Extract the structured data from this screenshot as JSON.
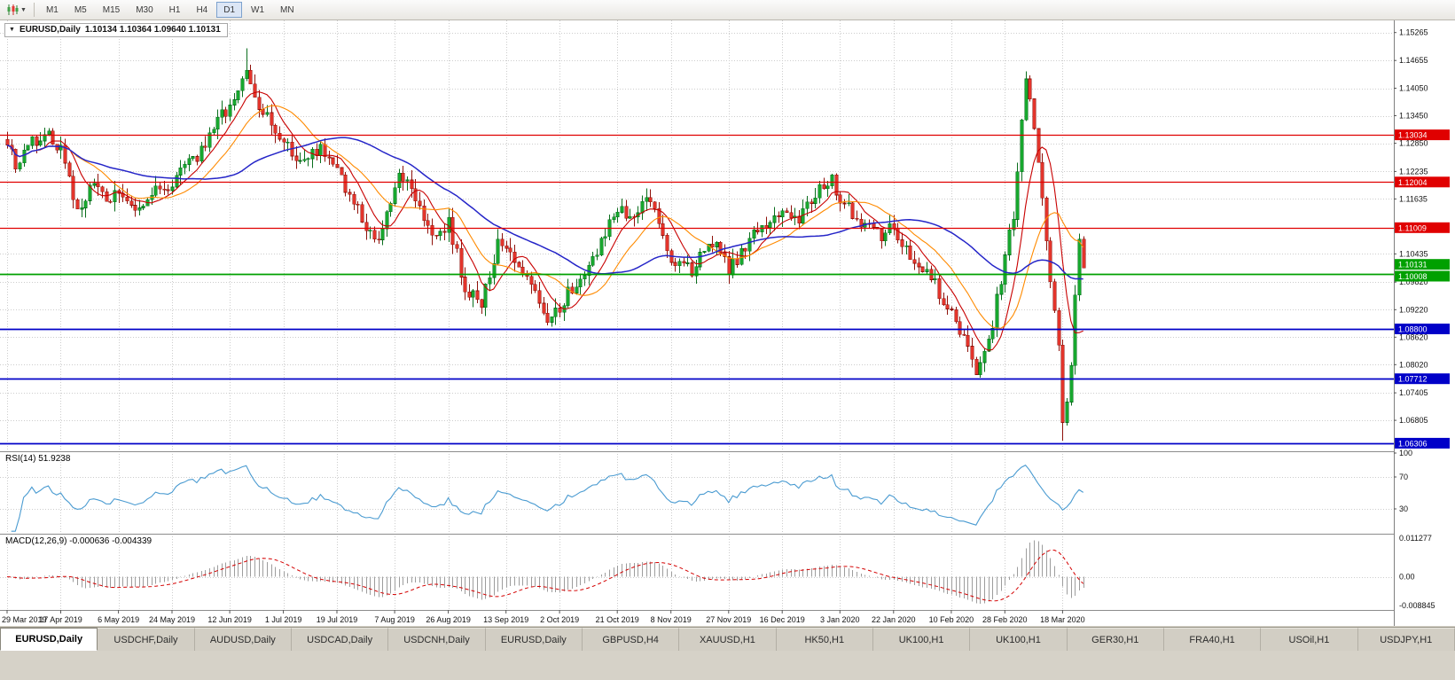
{
  "toolbar": {
    "timeframes": [
      "M1",
      "M5",
      "M15",
      "M30",
      "H1",
      "H4",
      "D1",
      "W1",
      "MN"
    ],
    "active_timeframe": "D1"
  },
  "chart_header": {
    "symbol_title": "EURUSD,Daily",
    "ohlc_text": "1.10134 1.10364 1.09640 1.10131"
  },
  "indicators": {
    "rsi_label": "RSI(14)",
    "rsi_value": "51.9238",
    "macd_label": "MACD(12,26,9)",
    "macd_values": "-0.000636 -0.004339"
  },
  "axes": {
    "price_ticks": [
      "1.15265",
      "1.14655",
      "1.14050",
      "1.13450",
      "1.12850",
      "1.12235",
      "1.11635",
      "1.10435",
      "1.09820",
      "1.09220",
      "1.08620",
      "1.08020",
      "1.07405",
      "1.06805"
    ],
    "rsi_ticks": [
      "100",
      "70",
      "30"
    ],
    "macd_ticks": [
      "0.011277",
      "0.00",
      "-0.008845"
    ],
    "date_labels": [
      {
        "t": "29 Mar 2019",
        "i": 0
      },
      {
        "t": "17 Apr 2019",
        "i": 13
      },
      {
        "t": "6 May 2019",
        "i": 27
      },
      {
        "t": "24 May 2019",
        "i": 40
      },
      {
        "t": "12 Jun 2019",
        "i": 54
      },
      {
        "t": "1 Jul 2019",
        "i": 67
      },
      {
        "t": "19 Jul 2019",
        "i": 80
      },
      {
        "t": "7 Aug 2019",
        "i": 94
      },
      {
        "t": "26 Aug 2019",
        "i": 107
      },
      {
        "t": "13 Sep 2019",
        "i": 121
      },
      {
        "t": "2 Oct 2019",
        "i": 134
      },
      {
        "t": "21 Oct 2019",
        "i": 148
      },
      {
        "t": "8 Nov 2019",
        "i": 161
      },
      {
        "t": "27 Nov 2019",
        "i": 175
      },
      {
        "t": "16 Dec 2019",
        "i": 188
      },
      {
        "t": "3 Jan 2020",
        "i": 202
      },
      {
        "t": "22 Jan 2020",
        "i": 215
      },
      {
        "t": "10 Feb 2020",
        "i": 229
      },
      {
        "t": "28 Feb 2020",
        "i": 242
      },
      {
        "t": "18 Mar 2020",
        "i": 256
      }
    ]
  },
  "levels": {
    "lines": [
      {
        "label": "1.13034",
        "price": 1.13034,
        "kind": "resistance"
      },
      {
        "label": "1.12004",
        "price": 1.12004,
        "kind": "resistance"
      },
      {
        "label": "1.11009",
        "price": 1.11009,
        "kind": "resistance"
      },
      {
        "label": "1.10008",
        "price": 1.10008,
        "kind": "pivot"
      },
      {
        "label": "1.08800",
        "price": 1.088,
        "kind": "support"
      },
      {
        "label": "1.07712",
        "price": 1.07712,
        "kind": "support"
      },
      {
        "label": "1.06306",
        "price": 1.06306,
        "kind": "support"
      }
    ],
    "current_price": {
      "label": "1.10131",
      "price": 1.10131
    }
  },
  "colors": {
    "up_fill": "#17a82e",
    "up_stroke": "#0a6e1d",
    "down_fill": "#e3342b",
    "down_stroke": "#8f120b",
    "resistance": "#e00000",
    "support": "#0000c8",
    "pivot": "#00a000",
    "current": "#00a000",
    "ma_fast": "#c80000",
    "ma_mid": "#ff8a00",
    "ma_slow": "#2525c8",
    "rsi_line": "#4a9bd1",
    "macd_hist": "#9d9d9d",
    "macd_signal": "#d40000",
    "grid": "#cccccc"
  },
  "chart_data": {
    "type": "candlestick",
    "symbol": "EURUSD",
    "timeframe": "Daily",
    "last_bar": {
      "open": 1.10134,
      "high": 1.10364,
      "low": 1.0964,
      "close": 1.10131
    },
    "indicator_values": {
      "rsi14": 51.9238,
      "macd_main": -0.000636,
      "macd_signal": -0.004339
    },
    "price_axis_range": [
      1.0615,
      1.1553
    ],
    "macd_range": [
      -0.008845,
      0.011277
    ],
    "rsi_levels": [
      30,
      70
    ],
    "horizontal_levels": [
      1.13034,
      1.12004,
      1.11009,
      1.10008,
      1.088,
      1.07712,
      1.06306
    ],
    "candles_count": 262,
    "noise": 0.0032,
    "wick": 0.0022,
    "extreme_high": 1.1492,
    "extreme_low": 1.0636,
    "last_close": 1.10131,
    "price_path_anchors": [
      [
        0,
        1.1295
      ],
      [
        2,
        1.1225
      ],
      [
        5,
        1.1285
      ],
      [
        9,
        1.1305
      ],
      [
        13,
        1.1275
      ],
      [
        17,
        1.1135
      ],
      [
        21,
        1.1195
      ],
      [
        24,
        1.1155
      ],
      [
        27,
        1.1185
      ],
      [
        31,
        1.1125
      ],
      [
        36,
        1.118
      ],
      [
        40,
        1.12
      ],
      [
        46,
        1.1255
      ],
      [
        51,
        1.133
      ],
      [
        56,
        1.14
      ],
      [
        58,
        1.1432
      ],
      [
        61,
        1.136
      ],
      [
        67,
        1.129
      ],
      [
        71,
        1.1245
      ],
      [
        76,
        1.1278
      ],
      [
        80,
        1.1222
      ],
      [
        85,
        1.114
      ],
      [
        90,
        1.1062
      ],
      [
        95,
        1.1218
      ],
      [
        98,
        1.1192
      ],
      [
        103,
        1.1085
      ],
      [
        107,
        1.1108
      ],
      [
        111,
        1.0972
      ],
      [
        115,
        1.0932
      ],
      [
        119,
        1.1062
      ],
      [
        121,
        1.1072
      ],
      [
        125,
        1.1002
      ],
      [
        129,
        1.0938
      ],
      [
        132,
        1.0895
      ],
      [
        134,
        1.0928
      ],
      [
        138,
        1.0985
      ],
      [
        143,
        1.1052
      ],
      [
        148,
        1.1145
      ],
      [
        152,
        1.1128
      ],
      [
        156,
        1.1162
      ],
      [
        161,
        1.1035
      ],
      [
        166,
        1.1008
      ],
      [
        171,
        1.1072
      ],
      [
        175,
        1.1005
      ],
      [
        180,
        1.1078
      ],
      [
        184,
        1.1102
      ],
      [
        188,
        1.1138
      ],
      [
        192,
        1.1118
      ],
      [
        197,
        1.1182
      ],
      [
        200,
        1.1212
      ],
      [
        202,
        1.116
      ],
      [
        207,
        1.1115
      ],
      [
        212,
        1.1085
      ],
      [
        215,
        1.1098
      ],
      [
        220,
        1.1015
      ],
      [
        224,
        1.0992
      ],
      [
        229,
        1.0908
      ],
      [
        232,
        1.0862
      ],
      [
        235,
        1.0788
      ],
      [
        238,
        1.0852
      ],
      [
        242,
        1.1032
      ],
      [
        244,
        1.1135
      ],
      [
        247,
        1.144
      ],
      [
        249,
        1.131
      ],
      [
        251,
        1.115
      ],
      [
        253,
        1.0995
      ],
      [
        255,
        1.083
      ],
      [
        256,
        1.068
      ],
      [
        257,
        1.0722
      ],
      [
        258,
        1.0815
      ],
      [
        259,
        1.094
      ],
      [
        260,
        1.109
      ],
      [
        261,
        1.10131
      ]
    ]
  },
  "tabs": {
    "items": [
      "EURUSD,Daily",
      "USDCHF,Daily",
      "AUDUSD,Daily",
      "USDCAD,Daily",
      "USDCNH,Daily",
      "EURUSD,Daily",
      "GBPUSD,H4",
      "XAUUSD,H1",
      "HK50,H1",
      "UK100,H1",
      "UK100,H1",
      "GER30,H1",
      "FRA40,H1",
      "USOil,H1",
      "USDJPY,H1"
    ],
    "active_index": 0
  }
}
